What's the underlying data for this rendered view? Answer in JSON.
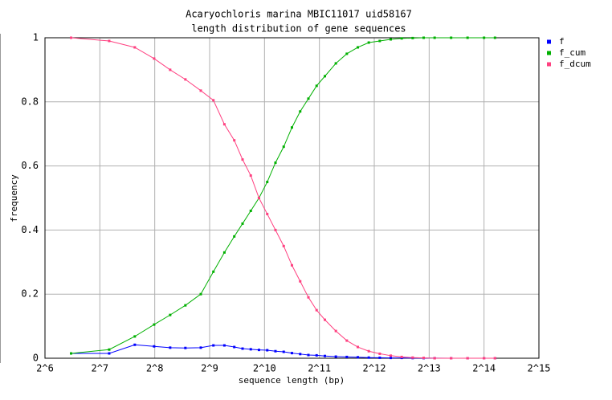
{
  "chart_data": {
    "type": "line",
    "title": "Acaryochloris marina MBIC11017 uid58167",
    "subtitle": "length distribution of gene sequences",
    "x_label": "sequence length (bp)",
    "y_label": "frequency",
    "x_scale": "log2",
    "grid": true,
    "legend": "right",
    "xlim": [
      64,
      32768
    ],
    "xticks": [
      {
        "value": 64,
        "label": "2^6"
      },
      {
        "value": 128,
        "label": "2^7"
      },
      {
        "value": 256,
        "label": "2^8"
      },
      {
        "value": 512,
        "label": "2^9"
      },
      {
        "value": 1024,
        "label": "2^10"
      },
      {
        "value": 2048,
        "label": "2^11"
      },
      {
        "value": 4096,
        "label": "2^12"
      },
      {
        "value": 8192,
        "label": "2^13"
      },
      {
        "value": 16384,
        "label": "2^14"
      },
      {
        "value": 32768,
        "label": "2^15"
      }
    ],
    "ylim": [
      0,
      1
    ],
    "yticks": [
      0,
      0.2,
      0.4,
      0.6,
      0.8,
      1
    ],
    "x": [
      89,
      144,
      199,
      254,
      311,
      377,
      458,
      537,
      617,
      699,
      776,
      861,
      955,
      1060,
      1176,
      1305,
      1448,
      1607,
      1783,
      1978,
      2195,
      2521,
      2896,
      3327,
      3822,
      4390,
      5043,
      5793,
      6654,
      7643,
      8780,
      10809,
      13308,
      16384,
      18820
    ],
    "series": [
      {
        "name": "f",
        "color": "#0000ff",
        "values": [
          0.015,
          0.015,
          0.042,
          0.037,
          0.033,
          0.032,
          0.033,
          0.04,
          0.04,
          0.035,
          0.03,
          0.028,
          0.026,
          0.025,
          0.022,
          0.02,
          0.016,
          0.013,
          0.01,
          0.009,
          0.007,
          0.005,
          0.004,
          0.003,
          0.002,
          0.0015,
          0.001,
          0.001,
          0.0005,
          0.0003,
          0.0002,
          0.0001,
          0,
          0,
          0
        ]
      },
      {
        "name": "f_cum",
        "color": "#00b000",
        "values": [
          0.015,
          0.027,
          0.068,
          0.105,
          0.135,
          0.165,
          0.2,
          0.27,
          0.33,
          0.38,
          0.42,
          0.46,
          0.5,
          0.55,
          0.61,
          0.66,
          0.72,
          0.77,
          0.81,
          0.85,
          0.88,
          0.92,
          0.95,
          0.97,
          0.985,
          0.99,
          0.995,
          0.998,
          0.999,
          1,
          1,
          1,
          1,
          1,
          1
        ]
      },
      {
        "name": "f_dcum",
        "color": "#ff4080",
        "values": [
          1,
          0.99,
          0.97,
          0.935,
          0.9,
          0.87,
          0.835,
          0.805,
          0.73,
          0.68,
          0.62,
          0.57,
          0.5,
          0.45,
          0.4,
          0.35,
          0.29,
          0.24,
          0.19,
          0.15,
          0.12,
          0.085,
          0.055,
          0.035,
          0.022,
          0.014,
          0.008,
          0.004,
          0.002,
          0.001,
          0,
          0,
          0,
          0,
          0
        ]
      }
    ]
  }
}
